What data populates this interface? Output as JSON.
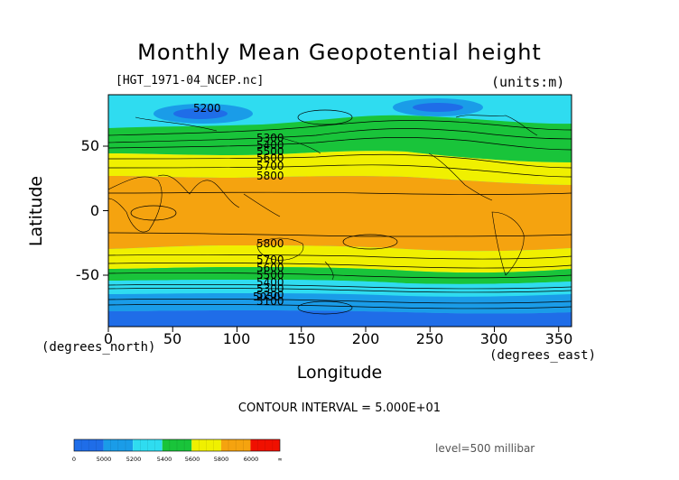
{
  "title": "Monthly Mean Geopotential height",
  "file_label": "[HGT_1971-04_NCEP.nc]",
  "units_label": "(units:m)",
  "chart_data": {
    "type": "contour-map",
    "xlabel": "Longitude",
    "ylabel": "Latitude",
    "x_unit": "(degrees_east)",
    "y_unit": "(degrees_north)",
    "xlim": [
      0,
      360
    ],
    "ylim": [
      -90,
      90
    ],
    "x_ticks": [
      "0",
      "50",
      "100",
      "150",
      "200",
      "250",
      "300",
      "350"
    ],
    "y_ticks": [
      "50",
      "0",
      "-50"
    ],
    "contour_labels": [
      "5200",
      "5300",
      "5400",
      "5500",
      "5600",
      "5700",
      "5800",
      "5800",
      "5700",
      "5600",
      "5500",
      "5400",
      "5300",
      "5200",
      "5100",
      "5050"
    ],
    "contour_interval_text": "CONTOUR INTERVAL = 5.000E+01",
    "level_text": "level=500 millibar",
    "colorbar": {
      "labels": [
        "0",
        "5000",
        "5200",
        "5400",
        "5600",
        "5800",
        "6000",
        "∞"
      ],
      "colors": [
        "#1f6de8",
        "#1a9ce8",
        "#2fdcf0",
        "#19c43a",
        "#f0f000",
        "#f5a30f",
        "#f01000"
      ]
    }
  }
}
